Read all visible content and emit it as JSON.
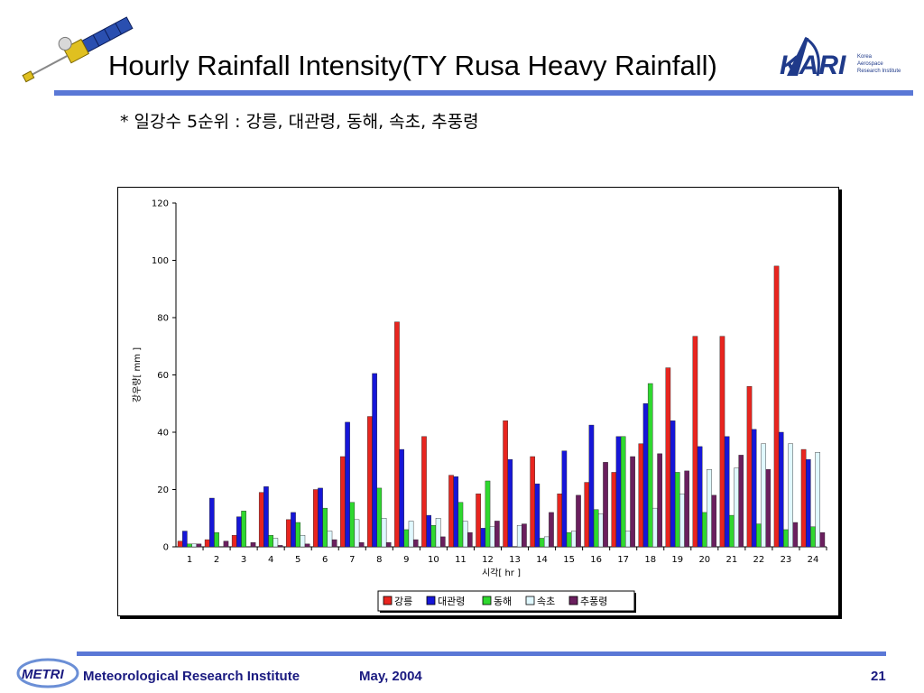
{
  "slide": {
    "title": "Hourly Rainfall Intensity(TY Rusa Heavy Rainfall)",
    "subtitle": "* 일강수 5순위 : 강릉, 대관령, 동해, 속초, 추풍령",
    "footer_institute": "Meteorological Research Institute",
    "footer_date": "May, 2004",
    "page_number": "21",
    "kari_logo_lines": [
      "Korea",
      "Aerospace",
      "Research Institute"
    ],
    "kari_logo_mark": "KARI",
    "metri_logo_text": "METRI"
  },
  "colors": {
    "accent_rule": "#5a78d6",
    "footer_text": "#1a1a80"
  },
  "chart_data": {
    "type": "bar",
    "title": "",
    "xlabel": "시각[ hr ]",
    "ylabel": "강우량[ mm ]",
    "ylim": [
      0,
      120
    ],
    "yticks": [
      0,
      20,
      40,
      60,
      80,
      100,
      120
    ],
    "grid": false,
    "legend_position": "bottom-center",
    "categories": [
      "1",
      "2",
      "3",
      "4",
      "5",
      "6",
      "7",
      "8",
      "9",
      "10",
      "11",
      "12",
      "13",
      "14",
      "15",
      "16",
      "17",
      "18",
      "19",
      "20",
      "21",
      "22",
      "23",
      "24"
    ],
    "series": [
      {
        "name": "강릉",
        "color": "#e8251f",
        "values": [
          2,
          2.5,
          4,
          19,
          9.5,
          20,
          31.5,
          45.5,
          78.5,
          38.5,
          25,
          18.5,
          44,
          31.5,
          18.5,
          22.5,
          26,
          36,
          62.5,
          73.5,
          73.5,
          56,
          98,
          34
        ]
      },
      {
        "name": "대관령",
        "color": "#1616d8",
        "values": [
          5.5,
          17,
          10.5,
          21,
          12,
          20.5,
          43.5,
          60.5,
          34,
          11,
          24.5,
          6.5,
          30.5,
          22,
          33.5,
          42.5,
          38.5,
          50,
          44,
          35,
          38.5,
          41,
          40,
          30.5
        ]
      },
      {
        "name": "동해",
        "color": "#2fd82f",
        "values": [
          1,
          5,
          12.5,
          4,
          8.5,
          13.5,
          15.5,
          20.5,
          6,
          7.5,
          15.5,
          23,
          0,
          3,
          5,
          13,
          38.5,
          57,
          26,
          12,
          11,
          8,
          6,
          7
        ]
      },
      {
        "name": "속초",
        "color": "#e0f8ff",
        "values": [
          1,
          0,
          0,
          3,
          4,
          5.5,
          9.5,
          10,
          9,
          10,
          9,
          7,
          7.5,
          3.5,
          5.5,
          11.5,
          5.5,
          13.5,
          18.5,
          27,
          27.5,
          36,
          36,
          33
        ]
      },
      {
        "name": "추풍령",
        "color": "#6a1f5e",
        "values": [
          1,
          2,
          1.5,
          0.5,
          1,
          2.5,
          1.5,
          1.5,
          2.5,
          3.5,
          5,
          9,
          8,
          12,
          18,
          29.5,
          31.5,
          32.5,
          26.5,
          18,
          32,
          27,
          8.5,
          5
        ]
      }
    ]
  }
}
